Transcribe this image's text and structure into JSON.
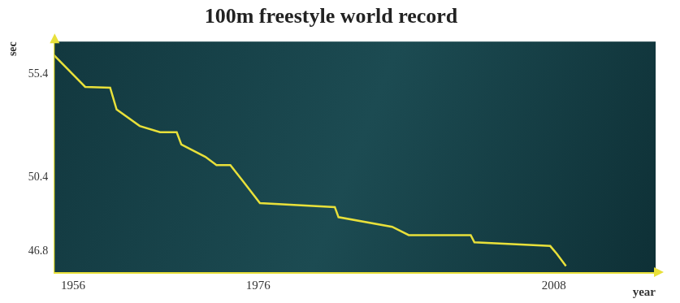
{
  "chart_data": {
    "type": "line",
    "title": "100m freestyle world record",
    "x_label": "year",
    "y_label": "sec",
    "x": [
      1953.9,
      1957.3,
      1960.0,
      1960.7,
      1963.2,
      1965.4,
      1967.2,
      1967.7,
      1970.3,
      1971.5,
      1973.0,
      1974.4,
      1976.2,
      1984.3,
      1984.7,
      1990.5,
      1992.3,
      1999.0,
      1999.4,
      2007.6,
      2008.3,
      2009.3
    ],
    "values": [
      56.35,
      54.8,
      54.76,
      53.7,
      52.9,
      52.6,
      52.6,
      52.0,
      51.4,
      51.0,
      51.0,
      50.2,
      49.15,
      48.96,
      48.47,
      48.0,
      47.6,
      47.6,
      47.25,
      47.07,
      46.7,
      46.1
    ],
    "color": "#e8e03a",
    "xlim": [
      1954,
      2019
    ],
    "ylim": [
      45.8,
      57
    ],
    "xticks": [
      1956,
      1976,
      2008
    ],
    "yticks": [
      55.4,
      50.4,
      46.8
    ],
    "grid": false
  }
}
